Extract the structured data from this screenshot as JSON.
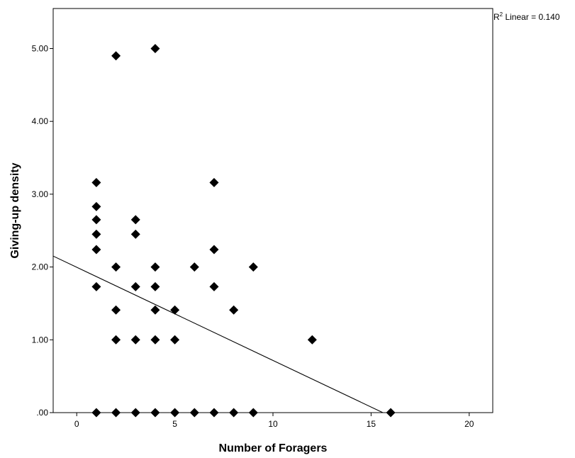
{
  "chart_data": {
    "type": "scatter",
    "xlabel": "Number of Foragers",
    "ylabel": "Giving-up density",
    "xlim": [
      -1.2,
      21.2
    ],
    "ylim": [
      0,
      5.55
    ],
    "x_ticks": [
      0,
      5,
      10,
      15,
      20
    ],
    "x_tick_labels": [
      "0",
      "5",
      "10",
      "15",
      "20"
    ],
    "y_ticks": [
      0,
      1,
      2,
      3,
      4,
      5
    ],
    "y_tick_labels": [
      ".00",
      "1.00",
      "2.00",
      "3.00",
      "4.00",
      "5.00"
    ],
    "grid": false,
    "legend": "none",
    "annotation": {
      "prefix": "R",
      "sup": "2",
      "suffix": " Linear = 0.140"
    },
    "marker": "diamond",
    "marker_color": "#000000",
    "fit_line": {
      "type": "linear",
      "x": [
        -1.2,
        15.6
      ],
      "y": [
        2.15,
        0
      ]
    },
    "points": [
      {
        "x": 1,
        "y": 0
      },
      {
        "x": 1,
        "y": 1.73
      },
      {
        "x": 1,
        "y": 2.24
      },
      {
        "x": 1,
        "y": 2.45
      },
      {
        "x": 1,
        "y": 2.65
      },
      {
        "x": 1,
        "y": 2.83
      },
      {
        "x": 1,
        "y": 3.16
      },
      {
        "x": 2,
        "y": 0
      },
      {
        "x": 2,
        "y": 1
      },
      {
        "x": 2,
        "y": 1.41
      },
      {
        "x": 2,
        "y": 2
      },
      {
        "x": 2,
        "y": 4.9
      },
      {
        "x": 3,
        "y": 0
      },
      {
        "x": 3,
        "y": 1
      },
      {
        "x": 3,
        "y": 1.73
      },
      {
        "x": 3,
        "y": 2.45
      },
      {
        "x": 3,
        "y": 2.65
      },
      {
        "x": 4,
        "y": 0
      },
      {
        "x": 4,
        "y": 1
      },
      {
        "x": 4,
        "y": 1.41
      },
      {
        "x": 4,
        "y": 1.73
      },
      {
        "x": 4,
        "y": 2
      },
      {
        "x": 4,
        "y": 5
      },
      {
        "x": 5,
        "y": 0
      },
      {
        "x": 5,
        "y": 1
      },
      {
        "x": 5,
        "y": 1.41
      },
      {
        "x": 6,
        "y": 0
      },
      {
        "x": 6,
        "y": 2
      },
      {
        "x": 7,
        "y": 0
      },
      {
        "x": 7,
        "y": 1.73
      },
      {
        "x": 7,
        "y": 2.24
      },
      {
        "x": 7,
        "y": 3.16
      },
      {
        "x": 8,
        "y": 0
      },
      {
        "x": 8,
        "y": 1.41
      },
      {
        "x": 9,
        "y": 0
      },
      {
        "x": 9,
        "y": 2
      },
      {
        "x": 12,
        "y": 1
      },
      {
        "x": 16,
        "y": 0
      }
    ]
  }
}
